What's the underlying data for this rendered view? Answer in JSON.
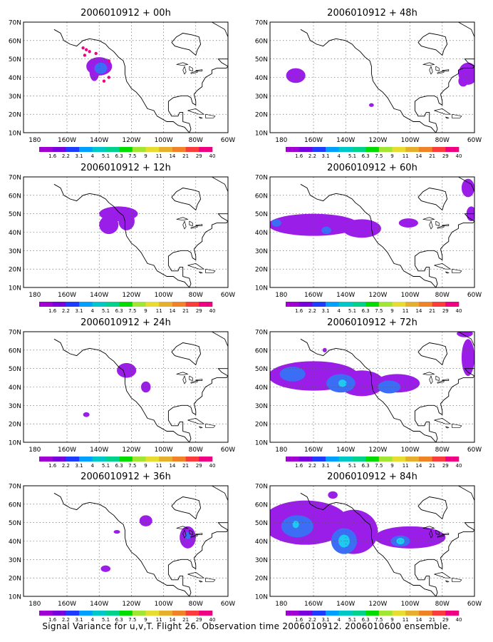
{
  "panels": [
    {
      "title": "2006010912 + 00h",
      "blobs": [
        {
          "lon": -140,
          "lat": 46,
          "rlon": 8,
          "rlat": 5,
          "level": 0
        },
        {
          "lon": -143,
          "lat": 43,
          "rlon": 3,
          "rlat": 5,
          "level": 0
        },
        {
          "lon": -139,
          "lat": 45,
          "rlon": 4,
          "rlat": 3,
          "level": 1
        }
      ],
      "dots": [
        [
          -150,
          56
        ],
        [
          -148,
          55
        ],
        [
          -146,
          54
        ],
        [
          -149,
          52
        ],
        [
          -142,
          53
        ],
        [
          -134,
          49
        ],
        [
          -134,
          40
        ],
        [
          -137,
          38
        ]
      ]
    },
    {
      "title": "2006010912 + 48h",
      "blobs": [
        {
          "lon": -171,
          "lat": 41,
          "rlon": 6,
          "rlat": 4,
          "level": 0
        },
        {
          "lon": -124,
          "lat": 25,
          "rlon": 1.5,
          "rlat": 1,
          "level": 0
        },
        {
          "lon": -64,
          "lat": 42,
          "rlon": 6,
          "rlat": 6,
          "level": 0
        },
        {
          "lon": -67,
          "lat": 38,
          "rlon": 3,
          "rlat": 3,
          "level": 0
        }
      ],
      "dots": []
    },
    {
      "title": "2006010912 + 12h",
      "blobs": [
        {
          "lon": -128,
          "lat": 50,
          "rlon": 12,
          "rlat": 4,
          "level": 0
        },
        {
          "lon": -134,
          "lat": 44,
          "rlon": 6,
          "rlat": 5,
          "level": 0
        },
        {
          "lon": -123,
          "lat": 46,
          "rlon": 5,
          "rlat": 5,
          "level": 0
        }
      ],
      "dots": []
    },
    {
      "title": "2006010912 + 60h",
      "blobs": [
        {
          "lon": -160,
          "lat": 44,
          "rlon": 28,
          "rlat": 6,
          "level": 0
        },
        {
          "lon": -130,
          "lat": 42,
          "rlon": 12,
          "rlat": 5,
          "level": 0
        },
        {
          "lon": -101,
          "lat": 45,
          "rlon": 6,
          "rlat": 2.5,
          "level": 0
        },
        {
          "lon": -64,
          "lat": 64,
          "rlon": 4,
          "rlat": 5,
          "level": 0
        },
        {
          "lon": -62,
          "lat": 50,
          "rlon": 3,
          "rlat": 4,
          "level": 0
        },
        {
          "lon": -183,
          "lat": 45,
          "rlon": 3,
          "rlat": 2,
          "level": 1
        },
        {
          "lon": -152,
          "lat": 41,
          "rlon": 3,
          "rlat": 2,
          "level": 1
        }
      ],
      "dots": []
    },
    {
      "title": "2006010912 + 24h",
      "blobs": [
        {
          "lon": -123,
          "lat": 49,
          "rlon": 6,
          "rlat": 4,
          "level": 0
        },
        {
          "lon": -111,
          "lat": 40,
          "rlon": 3,
          "rlat": 3,
          "level": 0
        },
        {
          "lon": -148,
          "lat": 25,
          "rlon": 2,
          "rlat": 1.3,
          "level": 0
        }
      ],
      "dots": []
    },
    {
      "title": "2006010912 + 72h",
      "blobs": [
        {
          "lon": -160,
          "lat": 46,
          "rlon": 28,
          "rlat": 8,
          "level": 0
        },
        {
          "lon": -130,
          "lat": 42,
          "rlon": 14,
          "rlat": 7,
          "level": 0
        },
        {
          "lon": -108,
          "lat": 42,
          "rlon": 14,
          "rlat": 5,
          "level": 0
        },
        {
          "lon": -64,
          "lat": 56,
          "rlon": 4,
          "rlat": 10,
          "level": 0
        },
        {
          "lon": -66,
          "lat": 69,
          "rlon": 5,
          "rlat": 2,
          "level": 0
        },
        {
          "lon": -153,
          "lat": 60,
          "rlon": 1.3,
          "rlat": 1.2,
          "level": 0
        },
        {
          "lon": -173,
          "lat": 47,
          "rlon": 8,
          "rlat": 4,
          "level": 1
        },
        {
          "lon": -143,
          "lat": 42,
          "rlon": 9,
          "rlat": 5,
          "level": 1
        },
        {
          "lon": -113,
          "lat": 40,
          "rlon": 7,
          "rlat": 3.5,
          "level": 1
        },
        {
          "lon": -142,
          "lat": 42,
          "rlon": 2.5,
          "rlat": 2,
          "level": 2
        }
      ],
      "dots": []
    },
    {
      "title": "2006010912 + 36h",
      "blobs": [
        {
          "lon": -111,
          "lat": 51,
          "rlon": 4,
          "rlat": 3,
          "level": 0
        },
        {
          "lon": -85,
          "lat": 42,
          "rlon": 5,
          "rlat": 6,
          "level": 0
        },
        {
          "lon": -129,
          "lat": 45,
          "rlon": 2,
          "rlat": 1,
          "level": 0
        },
        {
          "lon": -136,
          "lat": 25,
          "rlon": 3,
          "rlat": 1.8,
          "level": 0
        },
        {
          "lon": -85,
          "lat": 43,
          "rlon": 2,
          "rlat": 2,
          "level": 1
        }
      ],
      "dots": []
    },
    {
      "title": "2006010912 + 84h",
      "blobs": [
        {
          "lon": -165,
          "lat": 50,
          "rlon": 27,
          "rlat": 12,
          "level": 0
        },
        {
          "lon": -135,
          "lat": 45,
          "rlon": 15,
          "rlat": 12,
          "level": 0
        },
        {
          "lon": -100,
          "lat": 42,
          "rlon": 22,
          "rlat": 6,
          "level": 0
        },
        {
          "lon": -148,
          "lat": 65,
          "rlon": 3,
          "rlat": 2,
          "level": 0
        },
        {
          "lon": -170,
          "lat": 48,
          "rlon": 10,
          "rlat": 6,
          "level": 1
        },
        {
          "lon": -141,
          "lat": 40,
          "rlon": 8,
          "rlat": 7,
          "level": 1
        },
        {
          "lon": -106,
          "lat": 40,
          "rlon": 6,
          "rlat": 3,
          "level": 1
        },
        {
          "lon": -171,
          "lat": 49,
          "rlon": 2,
          "rlat": 2,
          "level": 2
        },
        {
          "lon": -141,
          "lat": 40,
          "rlon": 3.5,
          "rlat": 3.5,
          "level": 2
        },
        {
          "lon": -106,
          "lat": 40,
          "rlon": 2.5,
          "rlat": 1.8,
          "level": 2
        }
      ],
      "dots": []
    }
  ],
  "lat_labels": [
    "10N",
    "20N",
    "30N",
    "40N",
    "50N",
    "60N",
    "70N"
  ],
  "lat_values": [
    10,
    20,
    30,
    40,
    50,
    60,
    70
  ],
  "lon_labels": [
    "180",
    "160W",
    "140W",
    "120W",
    "100W",
    "80W",
    "60W"
  ],
  "lon_values": [
    -180,
    -160,
    -140,
    -120,
    -100,
    -80,
    -60
  ],
  "domain": {
    "lon_min": -187,
    "lon_max": -60,
    "lat_min": 10,
    "lat_max": 70
  },
  "colorbar": {
    "labels": [
      "1.6",
      "2.2",
      "3.1",
      "4",
      "5.1",
      "6.3",
      "7.5",
      "9",
      "11",
      "14",
      "21",
      "29",
      "40"
    ],
    "colors": [
      "#a000d2",
      "#7800dc",
      "#1e3cff",
      "#00a0ff",
      "#00c8c8",
      "#00d28c",
      "#00dc00",
      "#a0e632",
      "#e6dc32",
      "#e6af2d",
      "#f08228",
      "#fa3c3c",
      "#f00082"
    ]
  },
  "field_colors": [
    "#9a1ee8",
    "#3b6ef5",
    "#1fcaf0"
  ],
  "dot_color": "#f00082",
  "caption": "Signal Variance for u,v,T. Flight 26. Observation time 2006010912. 2006010600 ensemble."
}
